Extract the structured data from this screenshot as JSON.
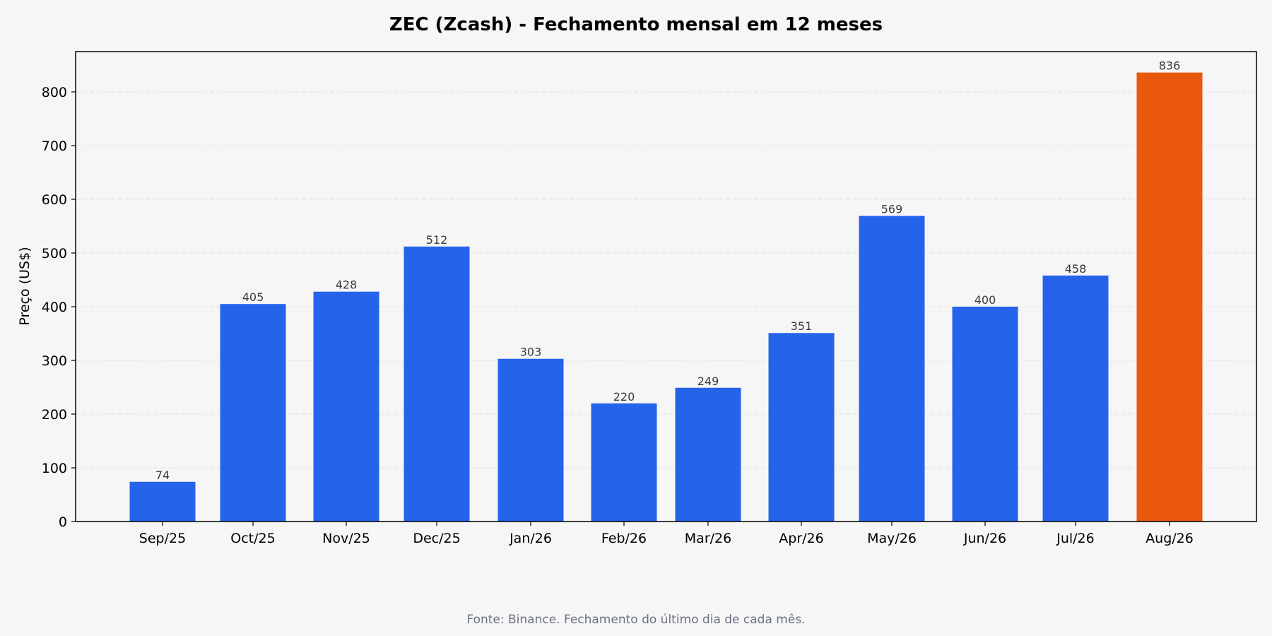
{
  "chart_data": {
    "type": "bar",
    "title": "ZEC (Zcash) - Fechamento mensal em 12 meses",
    "xlabel": "",
    "ylabel": "Preço (US$)",
    "categories": [
      "Sep/25",
      "Oct/25",
      "Nov/25",
      "Dec/25",
      "Jan/26",
      "Feb/26",
      "Mar/26",
      "Apr/26",
      "May/26",
      "Jun/26",
      "Jul/26",
      "Aug/26"
    ],
    "values": [
      74,
      405,
      428,
      512,
      303,
      220,
      249,
      351,
      569,
      400,
      458,
      836
    ],
    "data_labels": [
      "74",
      "405",
      "428",
      "512",
      "303",
      "220",
      "249",
      "351",
      "569",
      "400",
      "458",
      "836"
    ],
    "bar_colors": [
      "#2563eb",
      "#2563eb",
      "#2563eb",
      "#2563eb",
      "#2563eb",
      "#2563eb",
      "#2563eb",
      "#2563eb",
      "#2563eb",
      "#2563eb",
      "#2563eb",
      "#ea580c"
    ],
    "ylim": [
      0,
      875
    ],
    "yticks": [
      0,
      100,
      200,
      300,
      400,
      500,
      600,
      700,
      800
    ],
    "grid": true,
    "legend": "none"
  },
  "footer": {
    "source_note": "Fonte: Binance. Fechamento do último dia de cada mês."
  }
}
